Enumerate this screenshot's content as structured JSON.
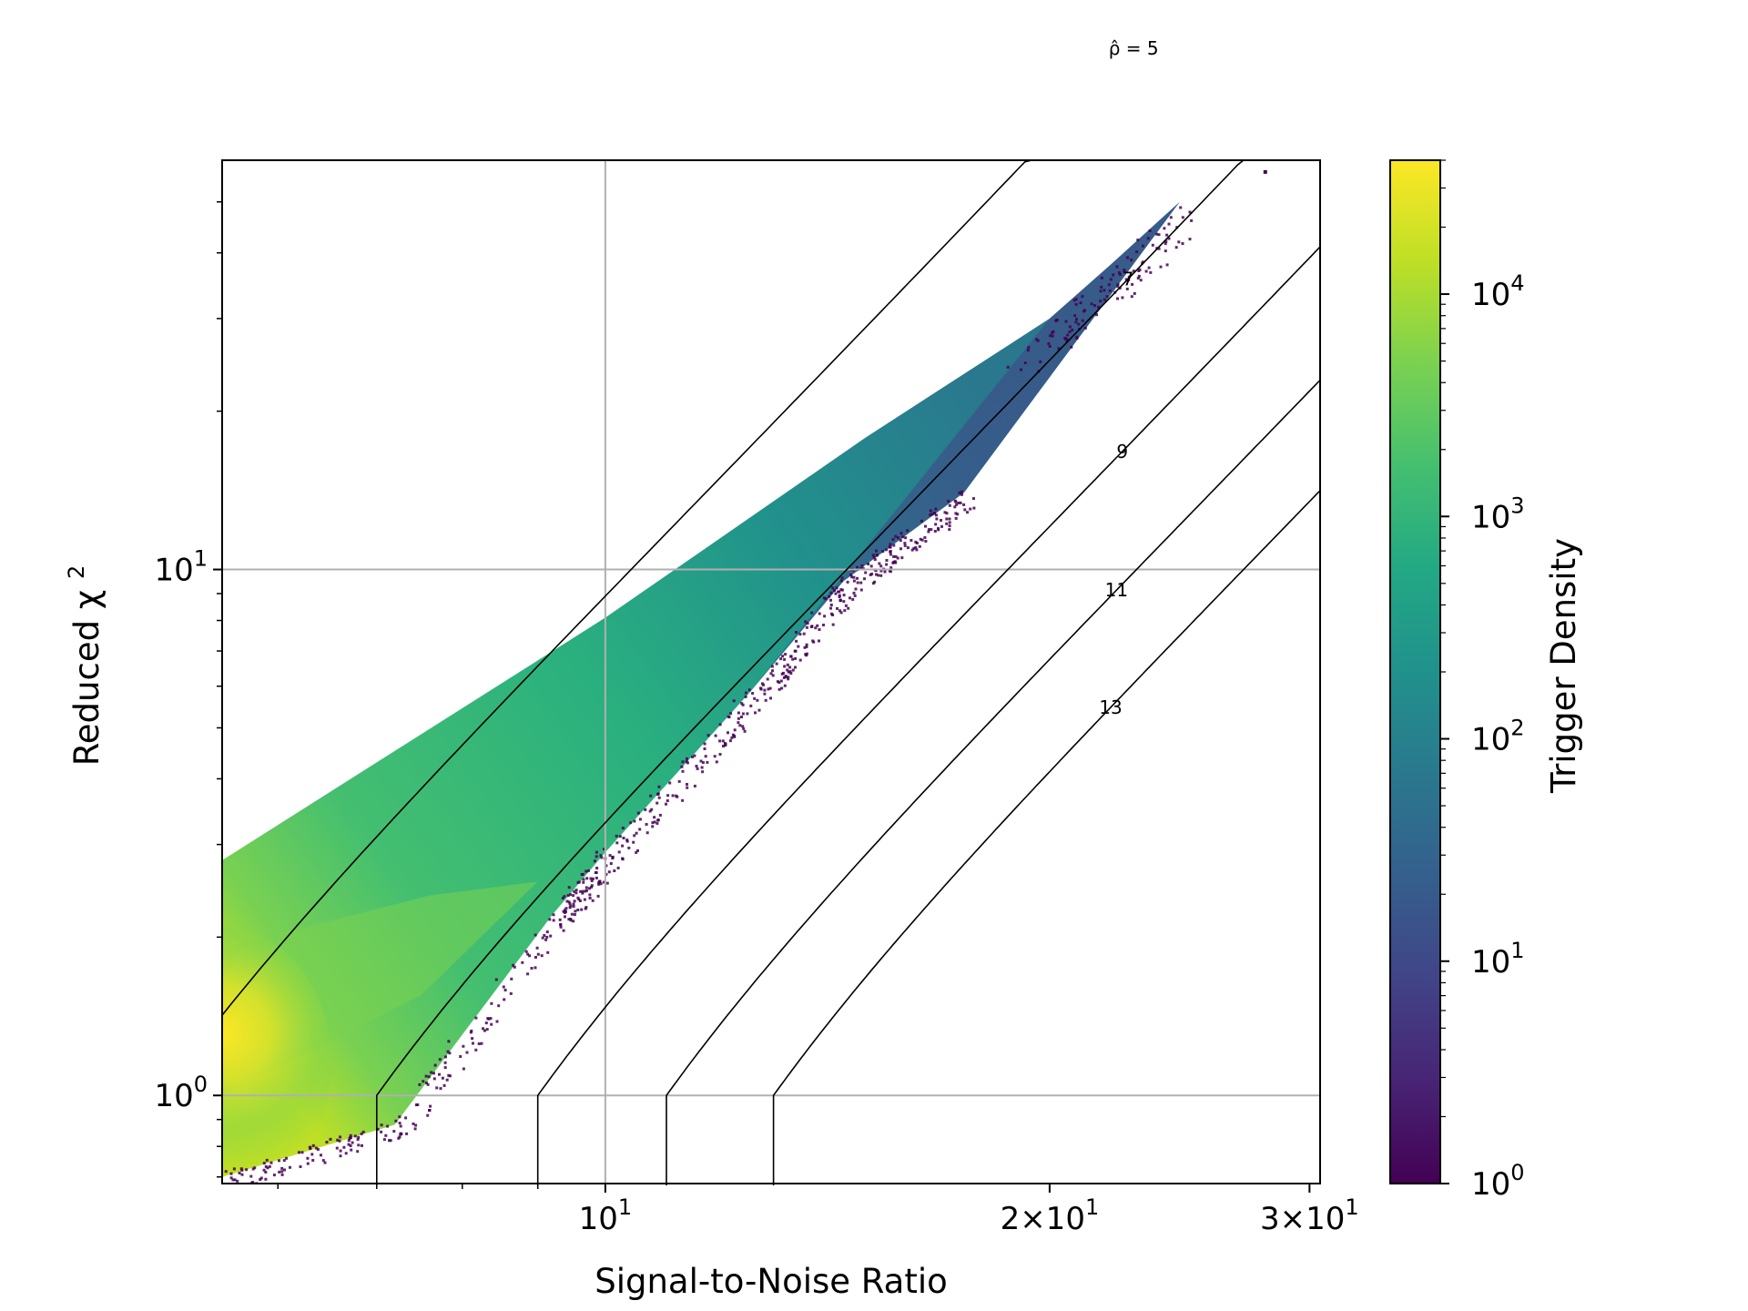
{
  "chart_data": {
    "type": "heatmap",
    "subtype": "hexbin density with contour overlay",
    "xlabel": "Signal-to-Noise Ratio",
    "ylabel": "Reduced χ²",
    "xscale": "log",
    "yscale": "log",
    "xlim": [
      5.5,
      30.5
    ],
    "ylim": [
      0.68,
      60
    ],
    "grid": true,
    "x_ticks": [
      {
        "value": 10,
        "base": "10",
        "exp": "1"
      },
      {
        "value": 20,
        "base": "2×10",
        "exp": "1"
      },
      {
        "value": 30,
        "base": "3×10",
        "exp": "1"
      }
    ],
    "y_ticks": [
      {
        "value": 1,
        "base": "10",
        "exp": "0"
      },
      {
        "value": 10,
        "base": "10",
        "exp": "1"
      }
    ],
    "colorbar": {
      "label": "Trigger Density",
      "scale": "log",
      "range": [
        1,
        40000
      ],
      "colormap": "viridis",
      "ticks": [
        {
          "value": 1,
          "base": "10",
          "exp": "0"
        },
        {
          "value": 10,
          "base": "10",
          "exp": "1"
        },
        {
          "value": 100,
          "base": "10",
          "exp": "2"
        },
        {
          "value": 1000,
          "base": "10",
          "exp": "3"
        },
        {
          "value": 10000,
          "base": "10",
          "exp": "4"
        }
      ]
    },
    "density_regions": [
      {
        "note": "upper envelope of triggers",
        "snr": [
          5.5,
          10,
          15,
          20,
          22,
          24.5
        ],
        "chisq": [
          2.8,
          8.1,
          17.8,
          30,
          38,
          50
        ]
      },
      {
        "note": "lower envelope of triggers",
        "snr": [
          5.5,
          7.2,
          9.2,
          10,
          12.5,
          14.5,
          17.5
        ],
        "chisq": [
          0.7,
          0.88,
          2.2,
          2.9,
          5.8,
          9.5,
          14
        ]
      },
      {
        "note": "peak density",
        "snr": 5.5,
        "chisq": 1.15,
        "density": 40000
      }
    ],
    "contours": [
      {
        "label": "ρ̂ = 5",
        "value": 5
      },
      {
        "label": "7",
        "value": 7
      },
      {
        "label": "9",
        "value": 9
      },
      {
        "label": "11",
        "value": 11
      },
      {
        "label": "13",
        "value": 13
      }
    ]
  }
}
